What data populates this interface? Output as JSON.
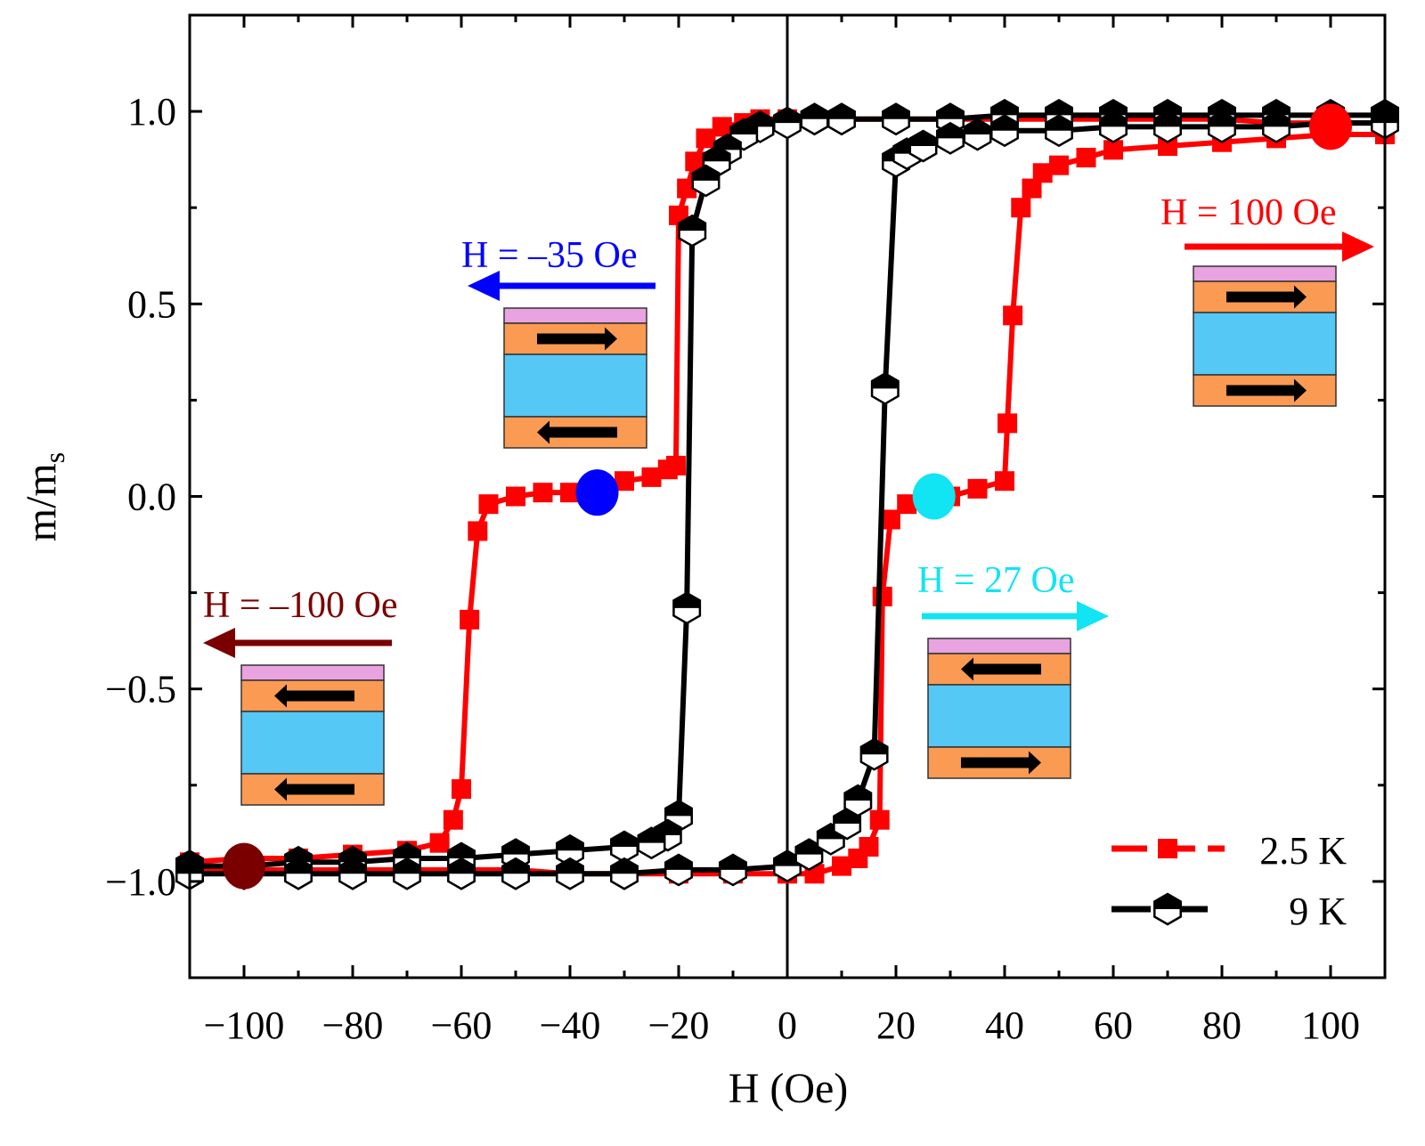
{
  "chart_data": {
    "type": "line",
    "xlabel": "H (Oe)",
    "ylabel": "m/m",
    "ylabel_subscript": "s",
    "xlim": [
      -110,
      110
    ],
    "ylim": [
      -1.25,
      1.25
    ],
    "xticks": [
      -100,
      -80,
      -60,
      -40,
      -20,
      0,
      20,
      40,
      60,
      80,
      100
    ],
    "xtick_labels": [
      "−100",
      "−80",
      "−60",
      "−40",
      "−20",
      "0",
      "20",
      "40",
      "60",
      "80",
      "100"
    ],
    "yticks": [
      1.0,
      0.5,
      0.0,
      -0.5,
      -1.0
    ],
    "ytick_labels": [
      "1.0",
      "0.5",
      "0.0",
      "−0.5",
      "−1.0"
    ],
    "grid": false,
    "legend_position": "bottom-right",
    "series": [
      {
        "name": "2.5 K",
        "color": "#ff0000",
        "marker": "square",
        "branches": [
          [
            [
              110,
              0.97
            ],
            [
              100,
              0.97
            ],
            [
              90,
              0.97
            ],
            [
              80,
              0.98
            ],
            [
              70,
              0.98
            ],
            [
              60,
              0.98
            ],
            [
              50,
              0.98
            ],
            [
              40,
              0.98
            ],
            [
              30,
              0.98
            ],
            [
              20,
              0.98
            ],
            [
              10,
              0.98
            ],
            [
              0,
              0.98
            ],
            [
              -5,
              0.98
            ],
            [
              -8,
              0.97
            ],
            [
              -12,
              0.96
            ],
            [
              -15,
              0.93
            ],
            [
              -17,
              0.87
            ],
            [
              -18.5,
              0.8
            ],
            [
              -20,
              0.73
            ],
            [
              -20.5,
              0.08
            ],
            [
              -22,
              0.07
            ],
            [
              -25,
              0.05
            ],
            [
              -30,
              0.04
            ],
            [
              -35,
              0.02
            ],
            [
              -40,
              0.01
            ],
            [
              -45,
              0.01
            ],
            [
              -50,
              0.0
            ],
            [
              -55,
              -0.02
            ],
            [
              -57,
              -0.09
            ],
            [
              -58.5,
              -0.32
            ],
            [
              -60,
              -0.76
            ],
            [
              -61.5,
              -0.84
            ],
            [
              -64,
              -0.9
            ],
            [
              -70,
              -0.92
            ],
            [
              -80,
              -0.93
            ],
            [
              -90,
              -0.94
            ],
            [
              -100,
              -0.94
            ],
            [
              -110,
              -0.95
            ]
          ],
          [
            [
              -110,
              -0.97
            ],
            [
              -100,
              -0.97
            ],
            [
              -90,
              -0.97
            ],
            [
              -80,
              -0.97
            ],
            [
              -70,
              -0.97
            ],
            [
              -60,
              -0.97
            ],
            [
              -50,
              -0.97
            ],
            [
              -40,
              -0.98
            ],
            [
              -30,
              -0.98
            ],
            [
              -20,
              -0.98
            ],
            [
              -10,
              -0.98
            ],
            [
              0,
              -0.98
            ],
            [
              5,
              -0.98
            ],
            [
              10,
              -0.96
            ],
            [
              13,
              -0.94
            ],
            [
              15,
              -0.91
            ],
            [
              17,
              -0.84
            ],
            [
              17.5,
              -0.26
            ],
            [
              19,
              -0.06
            ],
            [
              22,
              -0.02
            ],
            [
              25,
              -0.01
            ],
            [
              30,
              0.0
            ],
            [
              35,
              0.02
            ],
            [
              40,
              0.04
            ],
            [
              40.5,
              0.19
            ],
            [
              41.5,
              0.47
            ],
            [
              43,
              0.75
            ],
            [
              45,
              0.8
            ],
            [
              47,
              0.84
            ],
            [
              50,
              0.86
            ],
            [
              55,
              0.88
            ],
            [
              60,
              0.9
            ],
            [
              70,
              0.91
            ],
            [
              80,
              0.92
            ],
            [
              90,
              0.93
            ],
            [
              100,
              0.94
            ],
            [
              110,
              0.94
            ]
          ]
        ]
      },
      {
        "name": "9 K",
        "color": "#000000",
        "marker": "half-filled-hexagon",
        "branches": [
          [
            [
              110,
              0.99
            ],
            [
              100,
              0.99
            ],
            [
              90,
              0.99
            ],
            [
              80,
              0.99
            ],
            [
              70,
              0.99
            ],
            [
              60,
              0.99
            ],
            [
              50,
              0.99
            ],
            [
              40,
              0.99
            ],
            [
              30,
              0.98
            ],
            [
              20,
              0.98
            ],
            [
              10,
              0.98
            ],
            [
              5,
              0.98
            ],
            [
              0,
              0.97
            ],
            [
              -5,
              0.96
            ],
            [
              -8,
              0.94
            ],
            [
              -11,
              0.9
            ],
            [
              -13,
              0.87
            ],
            [
              -15,
              0.82
            ],
            [
              -17.5,
              0.69
            ],
            [
              -18.5,
              -0.29
            ],
            [
              -20,
              -0.83
            ],
            [
              -22,
              -0.88
            ],
            [
              -25,
              -0.9
            ],
            [
              -30,
              -0.91
            ],
            [
              -40,
              -0.92
            ],
            [
              -50,
              -0.93
            ],
            [
              -60,
              -0.94
            ],
            [
              -70,
              -0.94
            ],
            [
              -80,
              -0.95
            ],
            [
              -90,
              -0.95
            ],
            [
              -100,
              -0.96
            ],
            [
              -110,
              -0.96
            ]
          ],
          [
            [
              -110,
              -0.98
            ],
            [
              -100,
              -0.98
            ],
            [
              -90,
              -0.98
            ],
            [
              -80,
              -0.98
            ],
            [
              -70,
              -0.98
            ],
            [
              -60,
              -0.98
            ],
            [
              -50,
              -0.98
            ],
            [
              -40,
              -0.98
            ],
            [
              -30,
              -0.98
            ],
            [
              -20,
              -0.97
            ],
            [
              -10,
              -0.97
            ],
            [
              0,
              -0.96
            ],
            [
              4,
              -0.93
            ],
            [
              8,
              -0.89
            ],
            [
              11,
              -0.85
            ],
            [
              13,
              -0.79
            ],
            [
              16,
              -0.67
            ],
            [
              18,
              0.28
            ],
            [
              20,
              0.87
            ],
            [
              22,
              0.89
            ],
            [
              25,
              0.91
            ],
            [
              30,
              0.93
            ],
            [
              35,
              0.94
            ],
            [
              40,
              0.95
            ],
            [
              50,
              0.95
            ],
            [
              60,
              0.96
            ],
            [
              70,
              0.96
            ],
            [
              80,
              0.96
            ],
            [
              90,
              0.96
            ],
            [
              100,
              0.97
            ],
            [
              110,
              0.97
            ]
          ]
        ]
      }
    ],
    "highlight_points": [
      {
        "H": -100,
        "m": -0.96,
        "color": "#7a0000"
      },
      {
        "H": -35,
        "m": 0.01,
        "color": "#0000ff"
      },
      {
        "H": 27,
        "m": 0.0,
        "color": "#11e4f2"
      },
      {
        "H": 100,
        "m": 0.96,
        "color": "#ff0000"
      }
    ],
    "annotations": [
      {
        "label": "H = –35 Oe",
        "color": "#0000ff",
        "arrow": "left",
        "top_layer": "right",
        "bottom_layer": "left"
      },
      {
        "label": "H = –100 Oe",
        "color": "#7a0000",
        "arrow": "left",
        "top_layer": "left",
        "bottom_layer": "left"
      },
      {
        "label": "H = 27 Oe",
        "color": "#11e4f2",
        "arrow": "right",
        "top_layer": "left",
        "bottom_layer": "right"
      },
      {
        "label": "H = 100 Oe",
        "color": "#ff0000",
        "arrow": "right",
        "top_layer": "right",
        "bottom_layer": "right"
      }
    ],
    "layer_colors": {
      "cap": "#e8a3e0",
      "ferromagnet": "#fb9a52",
      "spacer": "#55c8f5"
    }
  }
}
